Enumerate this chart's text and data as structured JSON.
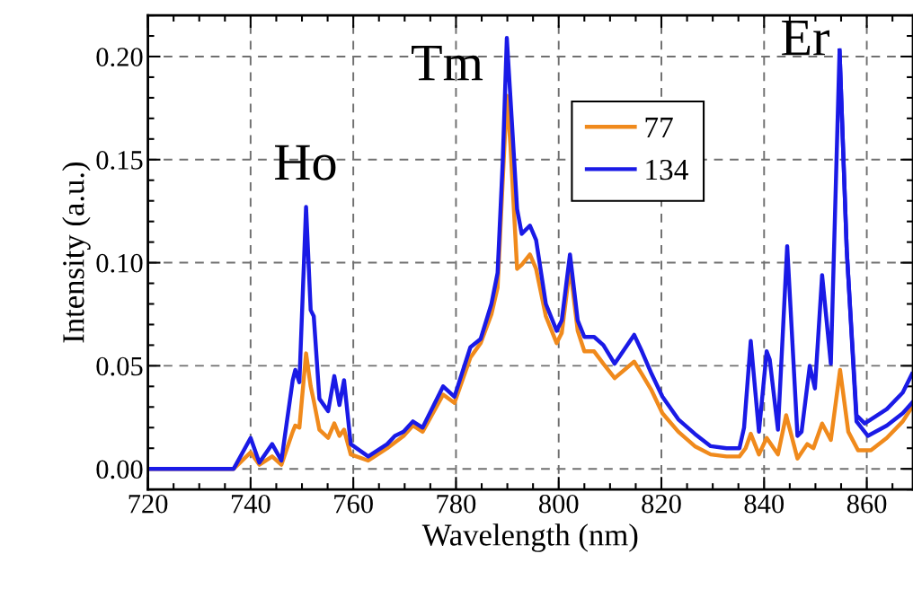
{
  "chart_data": {
    "type": "line",
    "xlabel": "Wavelength (nm)",
    "ylabel": "Intensity (a.u.)",
    "xlim": [
      720,
      869
    ],
    "ylim": [
      -0.01,
      0.22
    ],
    "xticks": [
      720,
      740,
      760,
      780,
      800,
      820,
      840,
      860
    ],
    "yticks": [
      {
        "value": 0,
        "label": "0.00"
      },
      {
        "value": 0.05,
        "label": "0.05"
      },
      {
        "value": 0.1,
        "label": "0.10"
      },
      {
        "value": 0.15,
        "label": "0.15"
      },
      {
        "value": 0.2,
        "label": "0.20"
      }
    ],
    "grid": true,
    "legend": "top right",
    "marker": "none",
    "line_style": "solid",
    "annotations": [
      "Ho",
      "Tm",
      "Er"
    ],
    "series": [
      {
        "name": "77",
        "color": "#f08a1c",
        "x": [
          720,
          736.7,
          740,
          741.7,
          744.2,
          746,
          748.2,
          748.7,
          749.5,
          750.8,
          751.7,
          752.3,
          753.4,
          755.1,
          756.3,
          757.3,
          758.2,
          759.5,
          762.9,
          766.6,
          769.8,
          771.6,
          773.5,
          777.5,
          779.7,
          782.8,
          784.8,
          786.9,
          788.1,
          789.9,
          790.6,
          791.9,
          792.8,
          794.4,
          795.6,
          797.5,
          799.6,
          800.6,
          802.2,
          803.7,
          805,
          806.9,
          808.7,
          810.9,
          814.7,
          816.2,
          818.1,
          820.2,
          823.3,
          826.5,
          829.6,
          832.7,
          835.2,
          836.4,
          837.4,
          839,
          840.5,
          842.7,
          844.3,
          846.5,
          848.4,
          849.6,
          851.3,
          853,
          854.8,
          856.4,
          858.3,
          860.8,
          863.9,
          867,
          868.8
        ],
        "values": [
          0,
          0,
          0.008,
          0.002,
          0.006,
          0.002,
          0.018,
          0.021,
          0.02,
          0.056,
          0.04,
          0.033,
          0.019,
          0.015,
          0.022,
          0.016,
          0.019,
          0.007,
          0.004,
          0.01,
          0.016,
          0.021,
          0.018,
          0.036,
          0.032,
          0.054,
          0.061,
          0.075,
          0.088,
          0.181,
          0.157,
          0.097,
          0.099,
          0.104,
          0.097,
          0.074,
          0.061,
          0.066,
          0.098,
          0.067,
          0.057,
          0.057,
          0.051,
          0.044,
          0.052,
          0.046,
          0.038,
          0.027,
          0.018,
          0.011,
          0.007,
          0.006,
          0.006,
          0.01,
          0.017,
          0.007,
          0.015,
          0.007,
          0.026,
          0.005,
          0.012,
          0.01,
          0.022,
          0.014,
          0.048,
          0.018,
          0.009,
          0.009,
          0.015,
          0.023,
          0.03
        ]
      },
      {
        "name": "134",
        "color": "#1a1ae6",
        "x": [
          720,
          736.7,
          740,
          741.7,
          744.2,
          746,
          748.2,
          748.7,
          749.5,
          750.8,
          751.7,
          752.3,
          753.4,
          755.1,
          756.3,
          757.3,
          758.2,
          759.5,
          762.9,
          766.6,
          768.1,
          769.8,
          771.6,
          773.5,
          777.5,
          779.7,
          782.8,
          784.8,
          786.9,
          788.1,
          789.1,
          789.9,
          790.6,
          791.9,
          792.8,
          794.4,
          795.6,
          797.5,
          799.6,
          800.6,
          802.2,
          803.7,
          805,
          806.9,
          808.7,
          810.9,
          814.7,
          816.2,
          818.1,
          820.2,
          823.3,
          826.5,
          829.6,
          832.7,
          835.2,
          836.1,
          837.4,
          839,
          840.5,
          841.1,
          842.7,
          844.5,
          846.5,
          847.3,
          848.9,
          849.9,
          851.3,
          853,
          854.7,
          856.1,
          858,
          860.2,
          863.9,
          867,
          868.8
        ],
        "values": [
          0,
          0,
          0.015,
          0.003,
          0.012,
          0.004,
          0.043,
          0.048,
          0.042,
          0.127,
          0.077,
          0.074,
          0.034,
          0.028,
          0.045,
          0.031,
          0.043,
          0.012,
          0.006,
          0.012,
          0.016,
          0.018,
          0.023,
          0.02,
          0.04,
          0.035,
          0.059,
          0.063,
          0.08,
          0.095,
          0.149,
          0.209,
          0.18,
          0.126,
          0.114,
          0.118,
          0.111,
          0.08,
          0.067,
          0.072,
          0.104,
          0.072,
          0.064,
          0.064,
          0.06,
          0.051,
          0.065,
          0.057,
          0.046,
          0.035,
          0.024,
          0.017,
          0.011,
          0.01,
          0.01,
          0.02,
          0.062,
          0.018,
          0.057,
          0.053,
          0.019,
          0.108,
          0.016,
          0.018,
          0.05,
          0.039,
          0.094,
          0.051,
          0.203,
          0.106,
          0.023,
          0.016,
          0.021,
          0.027,
          0.032
        ]
      },
      {
        "color": "#1a1ae6",
        "x": [
          854.7,
          856.1,
          858,
          859.6,
          863.9,
          867,
          868.8
        ],
        "values": [
          0.203,
          0.106,
          0.026,
          0.022,
          0.029,
          0.037,
          0.046
        ]
      }
    ]
  }
}
